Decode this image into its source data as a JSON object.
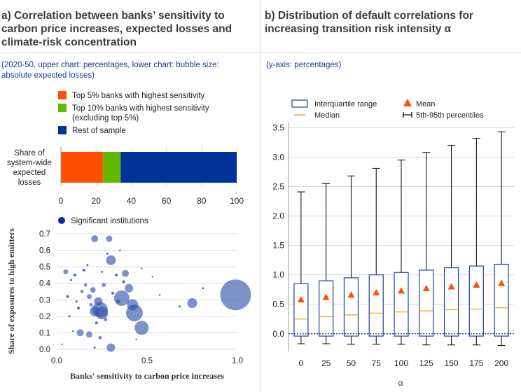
{
  "panel_a": {
    "title_line1": "a) Correlation between banks’ sensitivity to",
    "title_line2": "carbon price increases, expected losses and",
    "title_line3": "climate-risk concentration",
    "note_line1": "(2020-50, upper chart: percentages, lower chart: bubble size:",
    "note_line2": "absolute expected losses)",
    "legend": {
      "top5": "Top 5% banks with highest sensitivity",
      "top10_line1": "Top 10% banks with highest sensitivity",
      "top10_line2": "(excluding top 5%)",
      "rest": "Rest of sample",
      "significant": "Significant institutions"
    },
    "bar_label_lines": [
      "Share of",
      "system-wide",
      "expected",
      "losses"
    ],
    "colors": {
      "top5": "#ff4f00",
      "top10": "#65b800",
      "rest": "#003299",
      "bubble": "#2d4fa8"
    }
  },
  "panel_b": {
    "title_line1": "b) Distribution of default correlations for",
    "title_line2": "increasing transition risk intensity α",
    "note": "(y-axis: percentages)",
    "legend": {
      "iqr": "Interquartile range",
      "median": "Median",
      "mean": "Mean",
      "pct": "5th-95th percentiles"
    },
    "colors": {
      "box": "#1f3f99",
      "median": "#f0a800",
      "mean": "#ff4f00",
      "whisker": "#000000"
    }
  },
  "chart_data": [
    {
      "type": "bar",
      "orientation": "horizontal-stacked",
      "category": "Share of system-wide expected losses",
      "series": [
        {
          "name": "Top 5% banks with highest sensitivity",
          "value": 24
        },
        {
          "name": "Top 10% banks with highest sensitivity (excluding top 5%)",
          "value": 10
        },
        {
          "name": "Rest of sample",
          "value": 66
        }
      ],
      "xlim": [
        0,
        100
      ],
      "xticks": [
        "0",
        "20",
        "40",
        "60",
        "80",
        "100"
      ]
    },
    {
      "type": "scatter",
      "xlabel": "Banks' sensitivity to carbon price increases",
      "ylabel": "Share of exposures to high emitters",
      "xlim": [
        0,
        1.0
      ],
      "ylim": [
        0,
        0.7
      ],
      "xticks": [
        "0.0",
        "0.5",
        "1.0"
      ],
      "yticks": [
        "0.0",
        "0.1",
        "0.2",
        "0.3",
        "0.4",
        "0.5",
        "0.6",
        "0.7"
      ],
      "legend": "Significant institutions",
      "points": [
        {
          "x": 0.99,
          "y": 0.33,
          "size": 22
        },
        {
          "x": 0.75,
          "y": 0.28,
          "size": 7
        },
        {
          "x": 0.68,
          "y": 0.26,
          "size": 1.5
        },
        {
          "x": 0.81,
          "y": 0.37,
          "size": 1.5
        },
        {
          "x": 0.57,
          "y": 0.33,
          "size": 1.2
        },
        {
          "x": 0.47,
          "y": 0.13,
          "size": 10
        },
        {
          "x": 0.43,
          "y": 0.22,
          "size": 12
        },
        {
          "x": 0.36,
          "y": 0.31,
          "size": 11
        },
        {
          "x": 0.3,
          "y": 0.54,
          "size": 7
        },
        {
          "x": 0.29,
          "y": 0.67,
          "size": 4.5
        },
        {
          "x": 0.21,
          "y": 0.67,
          "size": 5
        },
        {
          "x": 0.24,
          "y": 0.24,
          "size": 11
        },
        {
          "x": 0.25,
          "y": 0.22,
          "size": 9
        },
        {
          "x": 0.21,
          "y": 0.23,
          "size": 7
        },
        {
          "x": 0.23,
          "y": 0.29,
          "size": 6
        },
        {
          "x": 0.4,
          "y": 0.37,
          "size": 6
        },
        {
          "x": 0.42,
          "y": 0.27,
          "size": 8
        },
        {
          "x": 0.38,
          "y": 0.46,
          "size": 5
        },
        {
          "x": 0.2,
          "y": 0.36,
          "size": 4
        },
        {
          "x": 0.18,
          "y": 0.32,
          "size": 3.5
        },
        {
          "x": 0.16,
          "y": 0.39,
          "size": 2.5
        },
        {
          "x": 0.14,
          "y": 0.35,
          "size": 2.5
        },
        {
          "x": 0.12,
          "y": 0.25,
          "size": 2
        },
        {
          "x": 0.1,
          "y": 0.45,
          "size": 2
        },
        {
          "x": 0.08,
          "y": 0.42,
          "size": 1.5
        },
        {
          "x": 0.05,
          "y": 0.47,
          "size": 3.5
        },
        {
          "x": 0.06,
          "y": 0.32,
          "size": 2
        },
        {
          "x": 0.07,
          "y": 0.2,
          "size": 1.5
        },
        {
          "x": 0.13,
          "y": 0.1,
          "size": 5
        },
        {
          "x": 0.18,
          "y": 0.09,
          "size": 4.5
        },
        {
          "x": 0.24,
          "y": 0.07,
          "size": 2.5
        },
        {
          "x": 0.3,
          "y": 0.01,
          "size": 6
        },
        {
          "x": 0.21,
          "y": 0.01,
          "size": 1.5
        },
        {
          "x": 0.15,
          "y": 0.48,
          "size": 2
        },
        {
          "x": 0.17,
          "y": 0.51,
          "size": 1.5
        },
        {
          "x": 0.25,
          "y": 0.47,
          "size": 1.5
        },
        {
          "x": 0.26,
          "y": 0.39,
          "size": 3
        },
        {
          "x": 0.31,
          "y": 0.34,
          "size": 2
        },
        {
          "x": 0.33,
          "y": 0.45,
          "size": 2
        },
        {
          "x": 0.34,
          "y": 0.29,
          "size": 3
        },
        {
          "x": 0.27,
          "y": 0.18,
          "size": 2.5
        },
        {
          "x": 0.22,
          "y": 0.16,
          "size": 2
        },
        {
          "x": 0.19,
          "y": 0.27,
          "size": 2.5
        },
        {
          "x": 0.11,
          "y": 0.29,
          "size": 1.5
        },
        {
          "x": 0.09,
          "y": 0.11,
          "size": 1.2
        },
        {
          "x": 0.47,
          "y": 0.49,
          "size": 1.2
        },
        {
          "x": 0.53,
          "y": 0.44,
          "size": 1.2
        },
        {
          "x": 0.35,
          "y": 0.6,
          "size": 1.2
        },
        {
          "x": 0.03,
          "y": 0.03,
          "size": 1.2
        },
        {
          "x": 0.44,
          "y": 0.06,
          "size": 1.2
        },
        {
          "x": 0.28,
          "y": 0.58,
          "size": 1.5
        },
        {
          "x": 0.37,
          "y": 0.41,
          "size": 2
        }
      ]
    },
    {
      "type": "box",
      "xlabel": "α",
      "categories": [
        "0",
        "25",
        "50",
        "75",
        "100",
        "125",
        "150",
        "175",
        "200"
      ],
      "ylim": [
        -0.3,
        3.6
      ],
      "yticks": [
        "0.0",
        "0.5",
        "1.0",
        "1.5",
        "2.0",
        "2.5",
        "3.0",
        "3.5"
      ],
      "q1": [
        -0.04,
        -0.04,
        -0.04,
        -0.04,
        -0.04,
        -0.04,
        -0.04,
        -0.04,
        -0.04
      ],
      "q3": [
        0.85,
        0.9,
        0.95,
        1.0,
        1.04,
        1.08,
        1.12,
        1.15,
        1.18
      ],
      "median": [
        0.25,
        0.29,
        0.32,
        0.35,
        0.37,
        0.39,
        0.41,
        0.42,
        0.44
      ],
      "mean": [
        0.58,
        0.62,
        0.66,
        0.7,
        0.73,
        0.77,
        0.8,
        0.83,
        0.86
      ],
      "p5": [
        -0.17,
        -0.17,
        -0.18,
        -0.18,
        -0.18,
        -0.19,
        -0.19,
        -0.19,
        -0.2
      ],
      "p95": [
        2.41,
        2.55,
        2.68,
        2.81,
        2.95,
        3.08,
        3.2,
        3.32,
        3.43
      ]
    }
  ]
}
